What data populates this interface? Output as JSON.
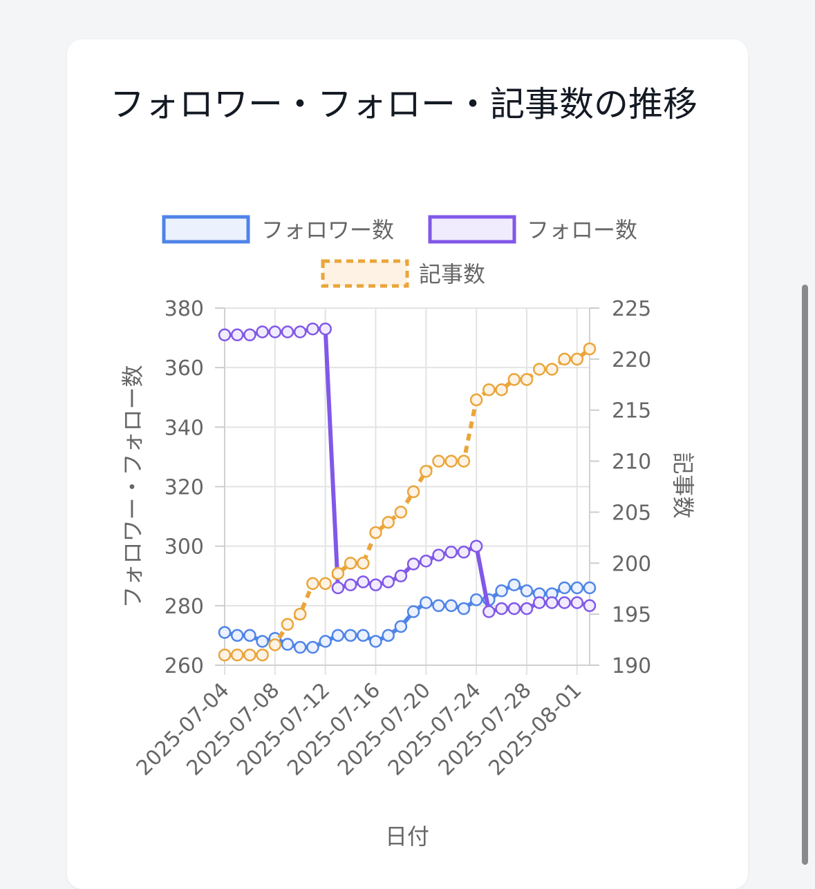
{
  "card": {
    "title": "フォロワー・フォロー・記事数の推移"
  },
  "chart_data": {
    "type": "line",
    "title": "",
    "xlabel": "日付",
    "ylabel_left": "フォロワー・フォロー数",
    "ylabel_right": "記事数",
    "ylim_left": [
      260,
      380
    ],
    "yticks_left": [
      260,
      280,
      300,
      320,
      340,
      360,
      380
    ],
    "ylim_right": [
      190,
      225
    ],
    "yticks_right": [
      190,
      195,
      200,
      205,
      210,
      215,
      220,
      225
    ],
    "x_ticks": [
      "2025-07-04",
      "2025-07-08",
      "2025-07-12",
      "2025-07-16",
      "2025-07-20",
      "2025-07-24",
      "2025-07-28",
      "2025-08-01"
    ],
    "grid": true,
    "legend_position": "top",
    "x": [
      "2025-07-04",
      "2025-07-05",
      "2025-07-06",
      "2025-07-07",
      "2025-07-08",
      "2025-07-09",
      "2025-07-10",
      "2025-07-11",
      "2025-07-12",
      "2025-07-13",
      "2025-07-14",
      "2025-07-15",
      "2025-07-16",
      "2025-07-17",
      "2025-07-18",
      "2025-07-19",
      "2025-07-20",
      "2025-07-21",
      "2025-07-22",
      "2025-07-23",
      "2025-07-24",
      "2025-07-25",
      "2025-07-26",
      "2025-07-27",
      "2025-07-28",
      "2025-07-29",
      "2025-07-30",
      "2025-07-31",
      "2025-08-01",
      "2025-08-02"
    ],
    "series": [
      {
        "name": "フォロワー数",
        "axis": "left",
        "color": "#4f84e8",
        "fill": "#ebf1fd",
        "dashed": false,
        "values": [
          271,
          270,
          270,
          268,
          269,
          267,
          266,
          266,
          268,
          270,
          270,
          270,
          268,
          270,
          273,
          278,
          281,
          280,
          280,
          279,
          282,
          282,
          285,
          287,
          285,
          284,
          284,
          286,
          286,
          286
        ]
      },
      {
        "name": "フォロー数",
        "axis": "left",
        "color": "#8158e8",
        "fill": "#f1ecfd",
        "dashed": false,
        "values": [
          371,
          371,
          371,
          372,
          372,
          372,
          372,
          373,
          373,
          286,
          287,
          288,
          287,
          288,
          290,
          294,
          295,
          297,
          298,
          298,
          300,
          278,
          279,
          279,
          279,
          281,
          281,
          281,
          281,
          280
        ]
      },
      {
        "name": "記事数",
        "axis": "right",
        "color": "#eaa53a",
        "fill": "#fdf2e3",
        "dashed": true,
        "values": [
          191,
          191,
          191,
          191,
          192,
          194,
          195,
          198,
          198,
          199,
          200,
          200,
          203,
          204,
          205,
          207,
          209,
          210,
          210,
          210,
          216,
          217,
          217,
          218,
          218,
          219,
          219,
          220,
          220,
          221
        ]
      }
    ]
  }
}
